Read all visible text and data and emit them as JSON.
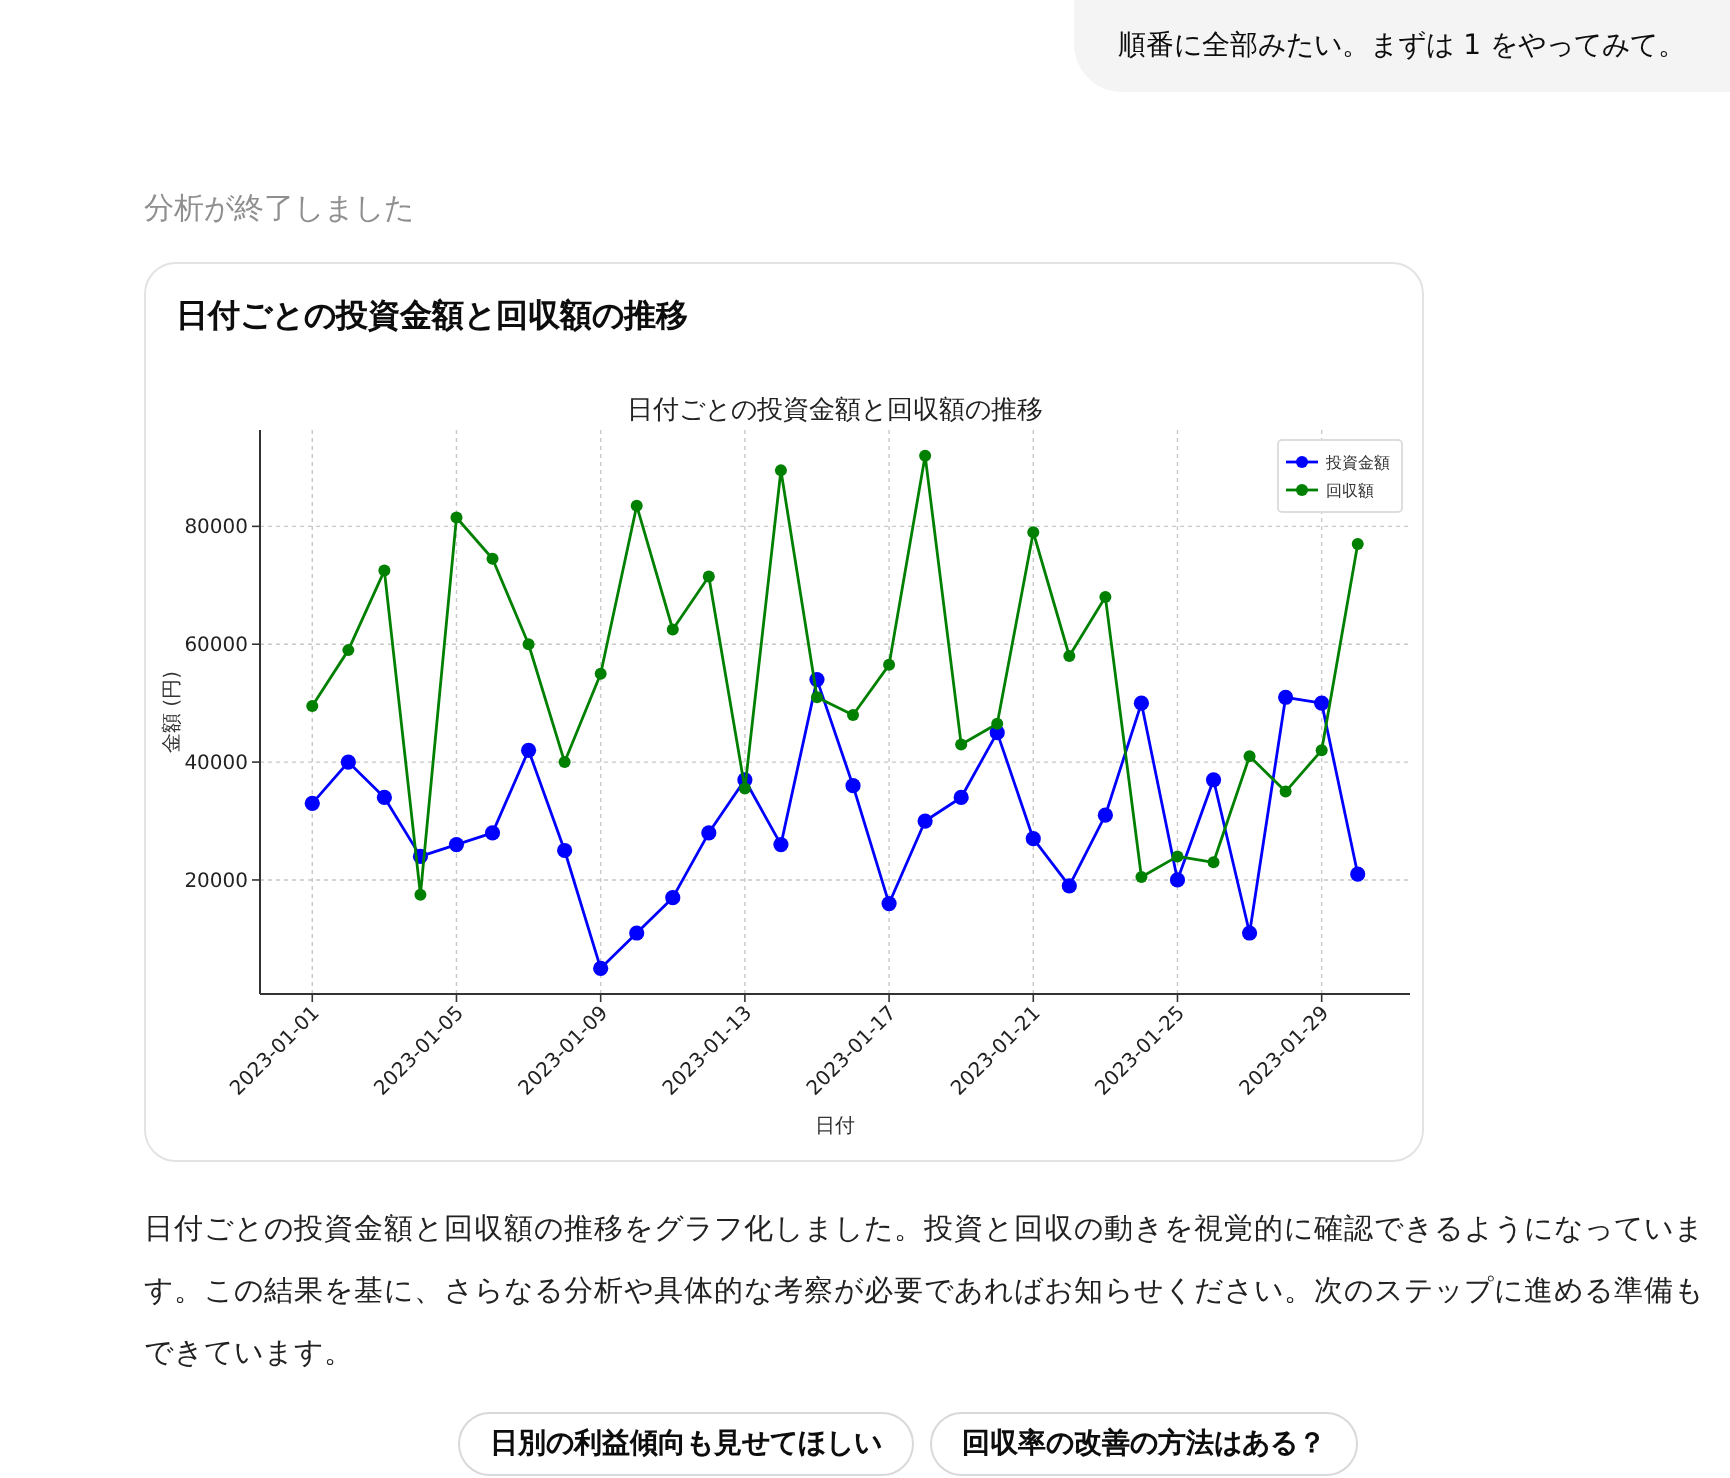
{
  "chart_data": {
    "type": "line",
    "title": "日付ごとの投資金額と回収額の推移",
    "subtitle": "日付ごとの投資金額と回収額の推移",
    "xlabel": "日付",
    "ylabel": "金額 (円)",
    "x": [
      "2023-01-01",
      "2023-01-02",
      "2023-01-03",
      "2023-01-04",
      "2023-01-05",
      "2023-01-06",
      "2023-01-07",
      "2023-01-08",
      "2023-01-09",
      "2023-01-10",
      "2023-01-11",
      "2023-01-12",
      "2023-01-13",
      "2023-01-14",
      "2023-01-15",
      "2023-01-16",
      "2023-01-17",
      "2023-01-18",
      "2023-01-19",
      "2023-01-20",
      "2023-01-21",
      "2023-01-22",
      "2023-01-23",
      "2023-01-24",
      "2023-01-25",
      "2023-01-26",
      "2023-01-27",
      "2023-01-28",
      "2023-01-29",
      "2023-01-30"
    ],
    "series": [
      {
        "name": "投資金額",
        "color": "#0000ff",
        "values": [
          33000,
          40000,
          34000,
          24000,
          26000,
          28000,
          42000,
          25000,
          5000,
          11000,
          17000,
          28000,
          37000,
          26000,
          54000,
          36000,
          16000,
          30000,
          34000,
          45000,
          27000,
          19000,
          31000,
          50000,
          20000,
          37000,
          11000,
          51000,
          50000,
          21000
        ]
      },
      {
        "name": "回収額",
        "color": "#008000",
        "values": [
          49500,
          59000,
          72500,
          17500,
          81500,
          74500,
          60000,
          40000,
          55000,
          83500,
          62500,
          71500,
          35500,
          89500,
          51000,
          48000,
          56500,
          92000,
          43000,
          46500,
          79000,
          58000,
          68000,
          20500,
          24000,
          23000,
          41000,
          35000,
          42000,
          77000
        ]
      }
    ],
    "xlim": [
      "2022-12-30T13:12",
      "2023-01-31T10:48"
    ],
    "ylim": [
      650,
      96350
    ],
    "xticks": [
      "2023-01-01",
      "2023-01-05",
      "2023-01-09",
      "2023-01-13",
      "2023-01-17",
      "2023-01-21",
      "2023-01-25",
      "2023-01-29"
    ],
    "yticks": [
      20000,
      40000,
      60000,
      80000
    ],
    "grid": true,
    "legend": "top right",
    "marker": "circle",
    "annotations": [
      "順番に全部みたい。まずは 1 をやってみて。",
      "分析が終了しました",
      "日付ごとの投資金額と回収額の推移をグラフ化しました。投資と回収の動きを視覚的に確認できるようになっています。この結果を基に、さらなる分析や具体的な考察が必要であればお知らせください。次のステップに進める準備もできています。",
      "日別の利益傾向も見せてほしい",
      "回収率の改善の方法はある？"
    ]
  }
}
